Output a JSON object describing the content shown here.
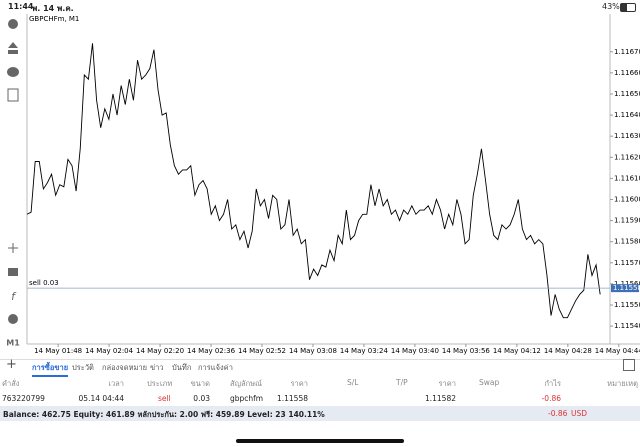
{
  "status_bar": {
    "time": "11:44",
    "date": "พ. 14 พ.ค.",
    "battery": "43%"
  },
  "chart_data": {
    "type": "line",
    "symbol": "GBPCHFm, M1",
    "color": "#000000",
    "values": [
      1.11593,
      1.11594,
      1.11618,
      1.11618,
      1.11605,
      1.11608,
      1.11612,
      1.11602,
      1.11607,
      1.11606,
      1.11619,
      1.11616,
      1.11604,
      1.11624,
      1.11659,
      1.11657,
      1.11674,
      1.11647,
      1.11634,
      1.11643,
      1.11638,
      1.1165,
      1.1164,
      1.11654,
      1.11645,
      1.11657,
      1.11647,
      1.11666,
      1.11657,
      1.11659,
      1.11662,
      1.11671,
      1.11652,
      1.1164,
      1.11641,
      1.11626,
      1.11616,
      1.11612,
      1.11614,
      1.11614,
      1.11616,
      1.11602,
      1.11607,
      1.11609,
      1.11605,
      1.11593,
      1.11597,
      1.1159,
      1.11593,
      1.116,
      1.11586,
      1.11588,
      1.11581,
      1.11585,
      1.11577,
      1.11585,
      1.11605,
      1.11597,
      1.116,
      1.11591,
      1.11602,
      1.116,
      1.11586,
      1.11588,
      1.116,
      1.11583,
      1.11586,
      1.11579,
      1.11581,
      1.11562,
      1.11567,
      1.11564,
      1.11569,
      1.11568,
      1.11576,
      1.11571,
      1.11583,
      1.11579,
      1.11595,
      1.11581,
      1.11583,
      1.1159,
      1.11593,
      1.11593,
      1.11607,
      1.11597,
      1.11605,
      1.11597,
      1.116,
      1.11593,
      1.11595,
      1.1159,
      1.11595,
      1.11593,
      1.11597,
      1.11593,
      1.11595,
      1.11595,
      1.11597,
      1.11593,
      1.116,
      1.11595,
      1.11586,
      1.11593,
      1.11588,
      1.116,
      1.11593,
      1.11579,
      1.11581,
      1.11602,
      1.11612,
      1.11624,
      1.11609,
      1.11593,
      1.11583,
      1.11581,
      1.11588,
      1.11586,
      1.11588,
      1.11593,
      1.116,
      1.11586,
      1.11581,
      1.11583,
      1.11579,
      1.11581,
      1.11579,
      1.11564,
      1.11545,
      1.11555,
      1.11548,
      1.11544,
      1.11544,
      1.11548,
      1.11552,
      1.11555,
      1.11557,
      1.11574,
      1.11564,
      1.11569,
      1.11555
    ],
    "xlim": [
      0,
      142.4
    ],
    "xticks": [
      {
        "value": 7.6,
        "label": "14 May 01:48"
      },
      {
        "value": 20.05,
        "label": "14 May 02:04"
      },
      {
        "value": 32.5,
        "label": "14 May 02:20"
      },
      {
        "value": 44.95,
        "label": "14 May 02:36"
      },
      {
        "value": 57.4,
        "label": "14 May 02:52"
      },
      {
        "value": 69.85,
        "label": "14 May 03:08"
      },
      {
        "value": 82.3,
        "label": "14 May 03:24"
      },
      {
        "value": 94.75,
        "label": "14 May 03:40"
      },
      {
        "value": 107.2,
        "label": "14 May 03:56"
      },
      {
        "value": 119.65,
        "label": "14 May 04:12"
      },
      {
        "value": 132.1,
        "label": "14 May 04:28"
      },
      {
        "value": 144.55,
        "label": "14 May 04:44"
      }
    ],
    "ylim": [
      1.11532,
      1.11686
    ],
    "yticks": [
      {
        "value": 1.1154,
        "label": "1.11540"
      },
      {
        "value": 1.1155,
        "label": "1.11550"
      },
      {
        "value": 1.1156,
        "label": "1.11560"
      },
      {
        "value": 1.1157,
        "label": "1.11570"
      },
      {
        "value": 1.1158,
        "label": "1.11580"
      },
      {
        "value": 1.1159,
        "label": "1.11590"
      },
      {
        "value": 1.116,
        "label": "1.11600"
      },
      {
        "value": 1.1161,
        "label": "1.11610"
      },
      {
        "value": 1.1162,
        "label": "1.11620"
      },
      {
        "value": 1.1163,
        "label": "1.11630"
      },
      {
        "value": 1.1164,
        "label": "1.11640"
      },
      {
        "value": 1.1165,
        "label": "1.11650"
      },
      {
        "value": 1.1166,
        "label": "1.11660"
      },
      {
        "value": 1.1167,
        "label": "1.11670"
      }
    ],
    "order_line": {
      "label": "sell 0.03",
      "value": 1.11558
    }
  },
  "toolbar": {
    "timeframe": "M1"
  },
  "tabs": [
    "การซื้อขาย",
    "ประวัติ",
    "กล่องจดหมาย",
    "ข่าว",
    "บันทึก",
    "การแจ้งค่า"
  ],
  "table": {
    "columns": [
      "คำสั่ง",
      "เวลา",
      "ประเภท",
      "ขนาด",
      "สัญลักษณ์",
      "ราคา",
      "S/L",
      "T/P",
      "ราคา",
      "Swap",
      "กำไร",
      "หมายเหตุ"
    ],
    "rows": [
      {
        "order": "763220799",
        "time": "05.14 04:44",
        "type": "sell",
        "volume": "0.03",
        "symbol": "gbpchfm",
        "open_price": "1.11558",
        "current_price": "1.11582",
        "profit": "-0.86"
      }
    ]
  },
  "footer": {
    "summary": "Balance: 462.75 Equity: 461.89 หลักประกัน: 2.00 ฟรี: 459.89 Level: 23 140.11%",
    "profit": "-0.86",
    "currency": "USD"
  }
}
